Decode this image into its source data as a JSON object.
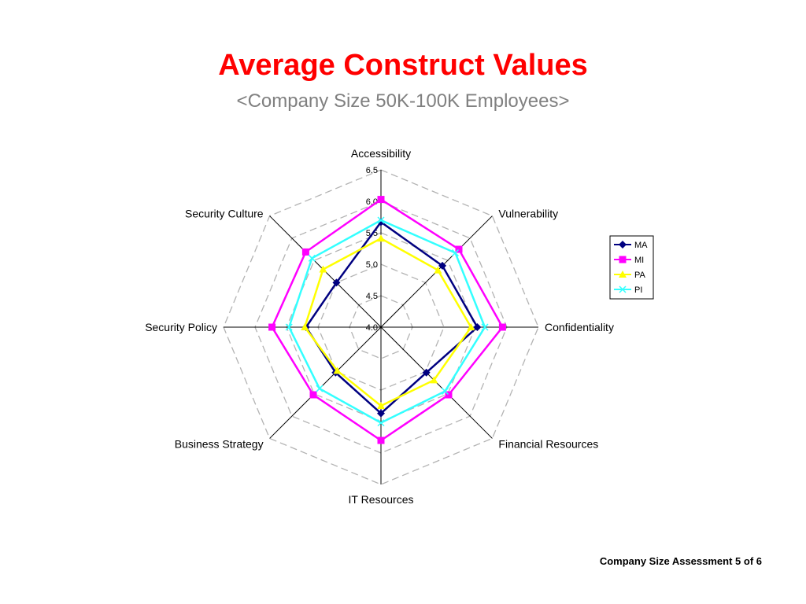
{
  "header": {
    "title": "Average Construct Values",
    "subtitle": "<Company Size 50K-100K Employees>"
  },
  "footer": {
    "text": "Company Size Assessment 5 of 6"
  },
  "chart_data": {
    "type": "radar",
    "categories": [
      "Accessibility",
      "Vulnerability",
      "Confidentiality",
      "Financial Resources",
      "IT Resources",
      "Business Strategy",
      "Security Policy",
      "Security Culture"
    ],
    "rlim": [
      4.0,
      6.5
    ],
    "ticks": [
      4.0,
      4.5,
      5.0,
      5.5,
      6.0,
      6.5
    ],
    "tick_labels": [
      "4.0",
      "4.5",
      "5.0",
      "5.5",
      "6.0",
      "6.5"
    ],
    "grid": true,
    "legend_position": "right",
    "series": [
      {
        "name": "MA",
        "color": "#000080",
        "marker": "diamond",
        "values": [
          5.67,
          5.38,
          5.53,
          5.02,
          5.37,
          5.02,
          5.19,
          5.0
        ]
      },
      {
        "name": "MI",
        "color": "#ff00ff",
        "marker": "square",
        "values": [
          6.03,
          5.75,
          5.93,
          5.52,
          5.8,
          5.52,
          5.73,
          5.69
        ]
      },
      {
        "name": "PA",
        "color": "#ffff00",
        "marker": "triangle",
        "values": [
          5.41,
          5.28,
          5.43,
          5.19,
          5.25,
          4.98,
          5.21,
          5.3
        ]
      },
      {
        "name": "PI",
        "color": "#33ffff",
        "marker": "x",
        "values": [
          5.7,
          5.67,
          5.65,
          5.44,
          5.52,
          5.38,
          5.46,
          5.55
        ]
      }
    ]
  }
}
